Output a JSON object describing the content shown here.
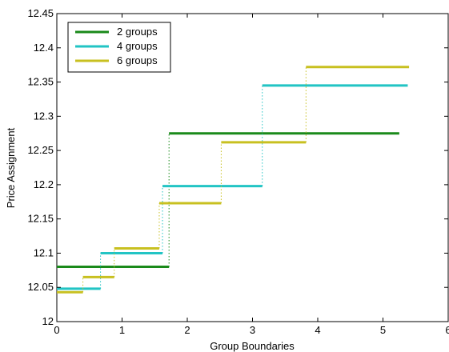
{
  "chart_data": {
    "type": "line",
    "xlabel": "Group Boundaries",
    "ylabel": "Price Assignment",
    "xlim": [
      0,
      6
    ],
    "ylim": [
      12,
      12.45
    ],
    "xticks": [
      "0",
      "1",
      "2",
      "3",
      "4",
      "5",
      "6"
    ],
    "yticks": [
      "12",
      "12.05",
      "12.1",
      "12.15",
      "12.2",
      "12.25",
      "12.3",
      "12.35",
      "12.4",
      "12.45"
    ],
    "grid": false,
    "legend_position": "top-left",
    "series": [
      {
        "name": "2 groups",
        "color": "#1a8a1a",
        "steps": [
          {
            "x0": 0.0,
            "x1": 1.72,
            "y": 12.08
          },
          {
            "x0": 1.72,
            "x1": 5.25,
            "y": 12.275
          }
        ]
      },
      {
        "name": "4 groups",
        "color": "#22c4c4",
        "steps": [
          {
            "x0": 0.0,
            "x1": 0.67,
            "y": 12.048
          },
          {
            "x0": 0.67,
            "x1": 1.62,
            "y": 12.1
          },
          {
            "x0": 1.62,
            "x1": 3.15,
            "y": 12.198
          },
          {
            "x0": 3.15,
            "x1": 5.38,
            "y": 12.345
          }
        ]
      },
      {
        "name": "6 groups",
        "color": "#c8c020",
        "steps": [
          {
            "x0": 0.0,
            "x1": 0.4,
            "y": 12.043
          },
          {
            "x0": 0.4,
            "x1": 0.88,
            "y": 12.065
          },
          {
            "x0": 0.88,
            "x1": 1.57,
            "y": 12.107
          },
          {
            "x0": 1.57,
            "x1": 2.52,
            "y": 12.173
          },
          {
            "x0": 2.52,
            "x1": 3.82,
            "y": 12.262
          },
          {
            "x0": 3.82,
            "x1": 5.4,
            "y": 12.372
          }
        ]
      }
    ]
  }
}
